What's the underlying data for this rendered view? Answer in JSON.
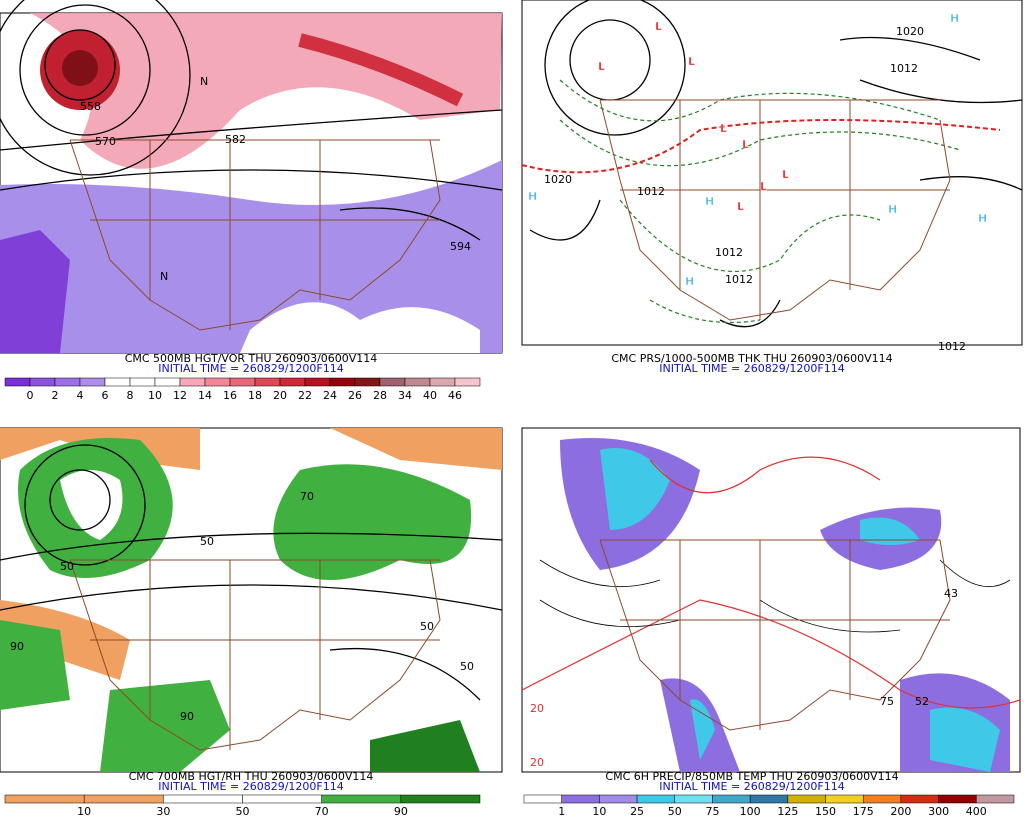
{
  "panels": [
    {
      "caption": "CMC 500MB HGT/VOR THU 260903/0600V114",
      "initial": "INITIAL TIME = 260829/1200F114",
      "map_labels": [
        "558",
        "570",
        "582",
        "594",
        "N",
        "N"
      ],
      "colorbar": {
        "labels": [
          "0",
          "2",
          "4",
          "6",
          "8",
          "10",
          "12",
          "14",
          "16",
          "18",
          "20",
          "22",
          "24",
          "26",
          "28",
          "34",
          "40",
          "46"
        ],
        "colors": [
          "#7b2fd6",
          "#8c52de",
          "#9c70e4",
          "#ad8ceb",
          "#ffffff",
          "#ffffff",
          "#ffffff",
          "#f7a8b8",
          "#f08898",
          "#e86878",
          "#e04858",
          "#d02838",
          "#b81020",
          "#980010",
          "#801818",
          "#a06070",
          "#c08890",
          "#dca8b0",
          "#f4c4cc"
        ]
      }
    },
    {
      "caption": "CMC PRS/1000-500MB THK THU 260903/0600V114",
      "initial": "INITIAL TIME = 260829/1200F114",
      "map_labels": [
        "L",
        "L",
        "L",
        "L",
        "L",
        "L",
        "L",
        "L",
        "H",
        "H",
        "H",
        "H",
        "H",
        "H",
        "1020",
        "1020",
        "1012",
        "1012",
        "1012",
        "1012",
        "1012"
      ]
    },
    {
      "caption": "CMC 700MB HGT/RH THU 260903/0600V114",
      "initial": "INITIAL TIME = 260829/1200F114",
      "map_labels": [
        "50",
        "50",
        "90",
        "90",
        "50",
        "70",
        "50"
      ],
      "colorbar": {
        "labels": [
          "10",
          "30",
          "50",
          "70",
          "90"
        ],
        "colors": [
          "#f0a060",
          "#f0a060",
          "#ffffff",
          "#ffffff",
          "#40b040",
          "#208020"
        ]
      }
    },
    {
      "caption": "CMC 6H PRECIP/850MB TEMP THU 260903/0600V114",
      "initial": "INITIAL TIME = 260829/1200F114",
      "map_labels": [
        "43",
        "75",
        "52",
        "20",
        "20"
      ],
      "colorbar": {
        "labels": [
          "1",
          "10",
          "25",
          "50",
          "75",
          "100",
          "125",
          "150",
          "175",
          "200",
          "300",
          "400"
        ],
        "colors": [
          "#ffffff",
          "#8c6ee0",
          "#a08ce8",
          "#40c8e8",
          "#70e0f0",
          "#40a8c8",
          "#3078a8",
          "#d0b000",
          "#f0d020",
          "#f08020",
          "#d03010",
          "#900000",
          "#c098a0"
        ]
      }
    }
  ]
}
